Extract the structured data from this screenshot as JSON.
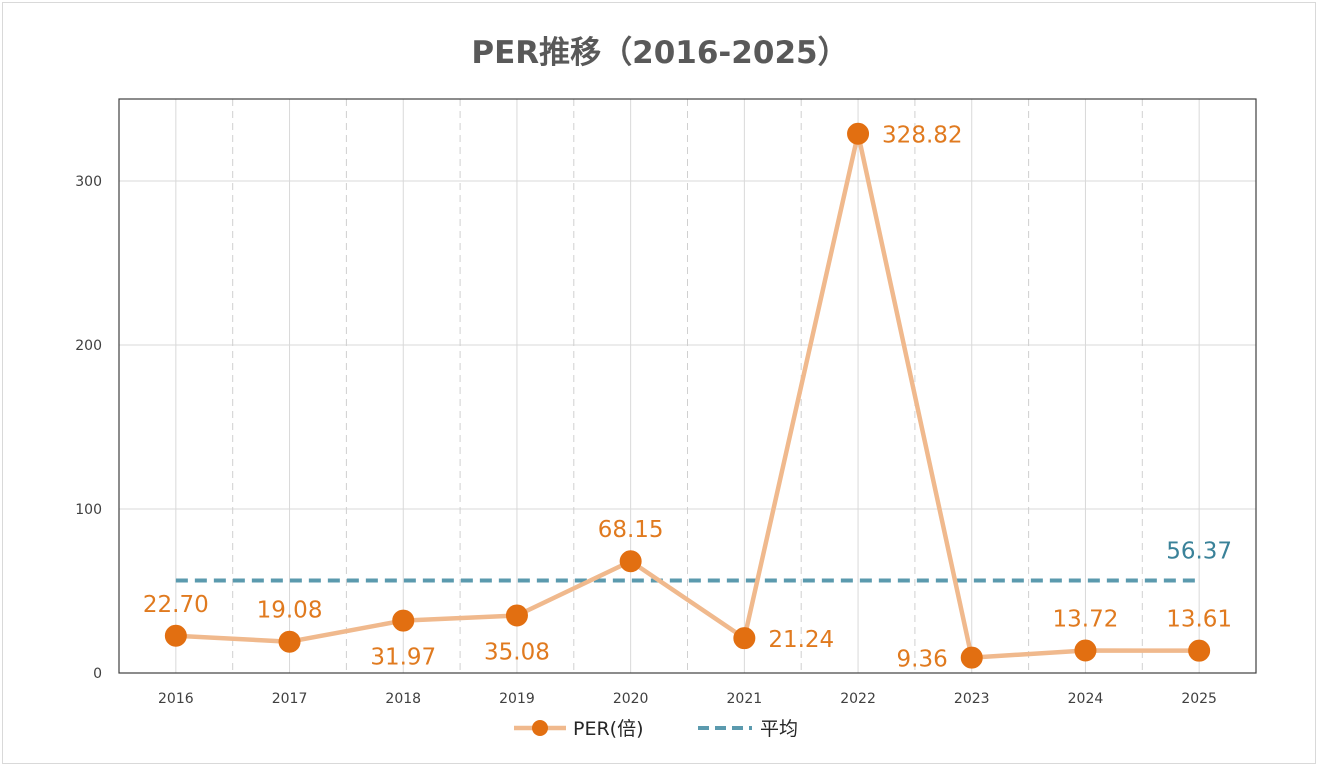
{
  "chart_data": {
    "type": "line",
    "title": "PER推移（2016-2025）",
    "xlabel": "",
    "ylabel": "",
    "categories": [
      "2016",
      "2017",
      "2018",
      "2019",
      "2020",
      "2021",
      "2022",
      "2023",
      "2024",
      "2025"
    ],
    "ylim": [
      0,
      350
    ],
    "yticks": [
      0,
      100,
      200,
      300
    ],
    "ytick_labels": [
      "0",
      "100",
      "200",
      "300"
    ],
    "grid": true,
    "legend_position": "bottom",
    "series": [
      {
        "name": "PER(倍)",
        "values": [
          22.7,
          19.08,
          31.97,
          35.08,
          68.15,
          21.24,
          328.82,
          9.36,
          13.72,
          13.61
        ],
        "data_labels": [
          "22.70",
          "19.08",
          "31.97",
          "35.08",
          "68.15",
          "21.24",
          "328.82",
          "9.36",
          "13.72",
          "13.61"
        ],
        "line_color": "#F0B98D",
        "marker_color": "#E26F11",
        "label_color": "#E07A1F",
        "style": "solid-with-markers"
      },
      {
        "name": "平均",
        "value": 56.37,
        "data_label": "56.37",
        "line_color": "#5B9AAE",
        "label_color": "#3A8299",
        "style": "dashed"
      }
    ]
  }
}
